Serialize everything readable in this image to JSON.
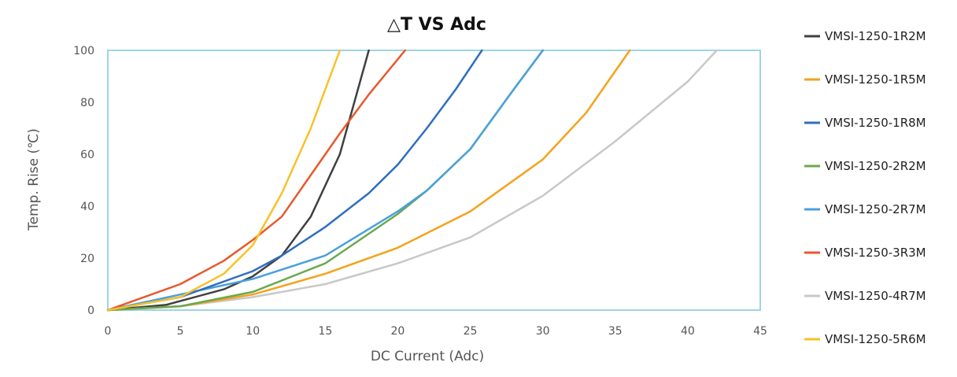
{
  "chart_data": {
    "type": "line",
    "title": "△T VS Adc",
    "xlabel": "DC Current (Adc)",
    "ylabel": "Temp. Rise (℃)",
    "xlim": [
      0,
      45
    ],
    "ylim": [
      0,
      100
    ],
    "x_ticks": [
      "0",
      "5",
      "10",
      "15",
      "20",
      "25",
      "30",
      "35",
      "40",
      "45"
    ],
    "y_ticks": [
      "0",
      "20",
      "40",
      "60",
      "80",
      "100"
    ],
    "grid": false,
    "legend_position": "right",
    "series": [
      {
        "name": "VMSI-1250-1R2M",
        "color": "#404040",
        "points": [
          [
            0,
            0
          ],
          [
            4,
            2
          ],
          [
            8,
            8
          ],
          [
            10,
            13
          ],
          [
            12,
            21
          ],
          [
            14,
            36
          ],
          [
            16,
            60
          ],
          [
            18,
            100
          ]
        ]
      },
      {
        "name": "VMSI-1250-1R5M",
        "color": "#f4a21c",
        "points": [
          [
            0,
            0
          ],
          [
            5,
            1.5
          ],
          [
            10,
            6
          ],
          [
            15,
            14
          ],
          [
            20,
            24
          ],
          [
            25,
            38
          ],
          [
            30,
            58
          ],
          [
            33,
            76
          ],
          [
            36,
            100
          ]
        ]
      },
      {
        "name": "VMSI-1250-1R8M",
        "color": "#2e6fc0",
        "points": [
          [
            0,
            0
          ],
          [
            5,
            5
          ],
          [
            10,
            15
          ],
          [
            12,
            21
          ],
          [
            15,
            32
          ],
          [
            18,
            45
          ],
          [
            20,
            56
          ],
          [
            22,
            70
          ],
          [
            24,
            85
          ],
          [
            25.8,
            100
          ]
        ]
      },
      {
        "name": "VMSI-1250-2R2M",
        "color": "#6aa84f",
        "points": [
          [
            0,
            0
          ],
          [
            5,
            1.5
          ],
          [
            10,
            7
          ],
          [
            15,
            18
          ],
          [
            20,
            37
          ],
          [
            22,
            46
          ],
          [
            25,
            62
          ],
          [
            28,
            85
          ],
          [
            30,
            100
          ]
        ]
      },
      {
        "name": "VMSI-1250-2R7M",
        "color": "#4aa0dc",
        "points": [
          [
            0,
            0
          ],
          [
            5,
            6
          ],
          [
            10,
            12
          ],
          [
            15,
            21
          ],
          [
            20,
            38
          ],
          [
            22,
            46
          ],
          [
            25,
            62
          ],
          [
            28,
            85
          ],
          [
            30,
            100
          ]
        ]
      },
      {
        "name": "VMSI-1250-3R3M",
        "color": "#e8582c",
        "points": [
          [
            0,
            0
          ],
          [
            5,
            10
          ],
          [
            8,
            19
          ],
          [
            10,
            27
          ],
          [
            12,
            36
          ],
          [
            14,
            52
          ],
          [
            16,
            68
          ],
          [
            18,
            83
          ],
          [
            20.5,
            100
          ]
        ]
      },
      {
        "name": "VMSI-1250-4R7M",
        "color": "#c8c8c8",
        "points": [
          [
            0,
            0
          ],
          [
            5,
            1.5
          ],
          [
            10,
            5
          ],
          [
            15,
            10
          ],
          [
            20,
            18
          ],
          [
            25,
            28
          ],
          [
            30,
            44
          ],
          [
            35,
            65
          ],
          [
            40,
            88
          ],
          [
            42,
            100
          ]
        ]
      },
      {
        "name": "VMSI-1250-5R6M",
        "color": "#f7c12a",
        "points": [
          [
            0,
            0
          ],
          [
            5,
            5
          ],
          [
            8,
            14
          ],
          [
            10,
            25
          ],
          [
            12,
            45
          ],
          [
            14,
            70
          ],
          [
            16,
            100
          ]
        ]
      }
    ]
  }
}
